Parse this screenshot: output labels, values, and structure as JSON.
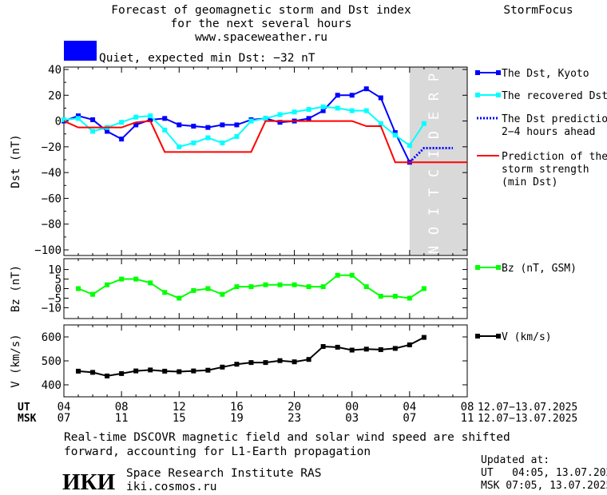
{
  "header": {
    "title_line1": "Forecast of geomagnetic storm and Dst index",
    "title_line2": "for the next several hours",
    "url": "www.spaceweather.ru",
    "brand": "StormFocus"
  },
  "status": {
    "text": "Quiet, expected min Dst: −32 nT",
    "color": "#0000ff"
  },
  "prediction_label": "PREDICTION",
  "footer": {
    "note_line1": "Real-time DSCOVR magnetic field and solar wind speed are shifted",
    "note_line2": "forward, accounting for L1-Earth propagation",
    "logo_text": "ИКИ",
    "org_name": "Space Research Institute RAS",
    "org_site": "iki.cosmos.ru",
    "updated_label": "Updated at:",
    "updated_ut": "UT   04:05, 13.07.2025",
    "updated_msk": "MSK 07:05, 13.07.2025"
  },
  "chart_data": {
    "type": "line",
    "x_axis": {
      "ut_label": "UT",
      "msk_label": "MSK",
      "ut_ticks": [
        "04",
        "08",
        "12",
        "16",
        "20",
        "00",
        "04",
        "08"
      ],
      "msk_ticks": [
        "07",
        "11",
        "15",
        "19",
        "23",
        "03",
        "07",
        "11"
      ],
      "ut_range": "12.07−13.07.2025",
      "msk_range": "12.07−13.07.2025",
      "x_range_hours": [
        0,
        28
      ],
      "prediction_start_hour": 24
    },
    "panels": [
      {
        "ylabel": "Dst (nT)",
        "ylim": [
          -100,
          40
        ],
        "yticks": [
          40,
          20,
          0,
          -20,
          -40,
          -60,
          -80,
          -100
        ],
        "series": [
          {
            "name": "The Dst, Kyoto",
            "color": "#0000ff",
            "style": "line-square",
            "x": [
              0,
              1,
              2,
              3,
              4,
              5,
              6,
              7,
              8,
              9,
              10,
              11,
              12,
              13,
              14,
              15,
              16,
              17,
              18,
              19,
              20,
              21,
              22,
              23,
              24
            ],
            "y": [
              0,
              4,
              1,
              -8,
              -14,
              -3,
              1,
              2,
              -3,
              -4,
              -5,
              -3,
              -3,
              1,
              2,
              -1,
              0,
              2,
              8,
              20,
              20,
              25,
              18,
              -9,
              -32
            ]
          },
          {
            "name": "The recovered Dst",
            "color": "#00ffff",
            "style": "line-square",
            "x": [
              0,
              1,
              2,
              3,
              4,
              5,
              6,
              7,
              8,
              9,
              10,
              11,
              12,
              13,
              14,
              15,
              16,
              17,
              18,
              19,
              20,
              21,
              22,
              23,
              24,
              25
            ],
            "y": [
              1,
              2,
              -8,
              -5,
              -1,
              3,
              4,
              -7,
              -20,
              -17,
              -13,
              -17,
              -12,
              0,
              2,
              5,
              7,
              9,
              11,
              10,
              8,
              8,
              -2,
              -11,
              -19,
              -2
            ]
          },
          {
            "name": "The Dst prediction\n2−4 hours ahead",
            "color": "#0000ff",
            "style": "dotted",
            "x": [
              24,
              25,
              26,
              27
            ],
            "y": [
              -32,
              -21,
              -21,
              -21
            ]
          },
          {
            "name": "Prediction of the\nstorm strength\n(min Dst)",
            "color": "#ff0000",
            "style": "step",
            "x": [
              0,
              1,
              3,
              4,
              5,
              6,
              7,
              13,
              14,
              20,
              21,
              22,
              23,
              24,
              28
            ],
            "y": [
              0,
              -5,
              -5,
              -5,
              -1,
              0,
              -24,
              -24,
              0,
              0,
              -4,
              -4,
              -32,
              -32,
              -32
            ]
          }
        ]
      },
      {
        "ylabel": "Bz (nT)",
        "ylim": [
          -14,
          14
        ],
        "yticks": [
          10,
          5,
          0,
          -5,
          -10
        ],
        "series": [
          {
            "name": "Bz (nT, GSM)",
            "color": "#00ff00",
            "style": "line-square",
            "x": [
              1,
              2,
              3,
              4,
              5,
              6,
              7,
              8,
              9,
              10,
              11,
              12,
              13,
              14,
              15,
              16,
              17,
              18,
              19,
              20,
              21,
              22,
              23,
              24,
              25
            ],
            "y": [
              0,
              -3,
              2,
              5,
              5,
              3,
              -2,
              -5,
              -1,
              0,
              -3,
              1,
              1,
              2,
              2,
              2,
              1,
              1,
              7,
              7,
              1,
              -4,
              -4,
              -5,
              0
            ]
          }
        ]
      },
      {
        "ylabel": "V (km/s)",
        "ylim": [
          350,
          650
        ],
        "yticks": [
          600,
          500,
          400
        ],
        "series": [
          {
            "name": "V (km/s)",
            "color": "#000000",
            "style": "line-square",
            "x": [
              1,
              2,
              3,
              4,
              5,
              6,
              7,
              8,
              9,
              10,
              11,
              12,
              13,
              14,
              15,
              16,
              17,
              18,
              19,
              20,
              21,
              22,
              23,
              24,
              25
            ],
            "y": [
              457,
              452,
              437,
              447,
              458,
              462,
              457,
              455,
              458,
              461,
              474,
              486,
              493,
              493,
              501,
              496,
              506,
              560,
              557,
              545,
              549,
              547,
              552,
              567,
              598
            ]
          }
        ]
      }
    ]
  }
}
